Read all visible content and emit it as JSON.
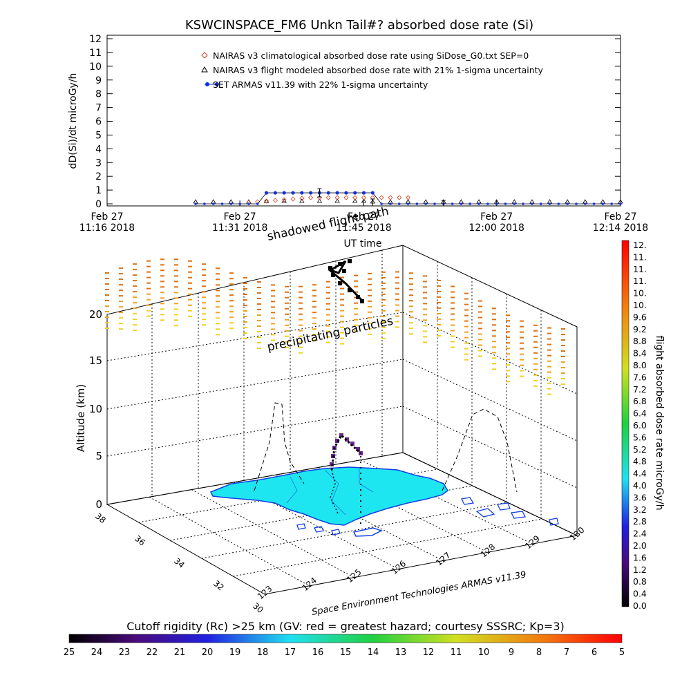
{
  "top_chart": {
    "type": "line",
    "title": "KSWCINSPACE_FM6 Unkn Tail#? absorbed dose rate (Si)",
    "ylabel": "dD(Si)/dt microGy/h",
    "xlabel": "UT time",
    "ylim": [
      0,
      12
    ],
    "yticks": [
      0,
      1,
      2,
      3,
      4,
      5,
      6,
      7,
      8,
      9,
      10,
      11,
      12
    ],
    "xlim_minutes": [
      0,
      58
    ],
    "xticks": [
      {
        "m": 0,
        "l1": "Feb 27",
        "l2": "11:16 2018"
      },
      {
        "m": 15,
        "l1": "Feb 27",
        "l2": "11:31 2018"
      },
      {
        "m": 29,
        "l1": "Feb 27",
        "l2": "11:45 2018"
      },
      {
        "m": 44,
        "l1": "Feb 27",
        "l2": "12:00 2018"
      },
      {
        "m": 58,
        "l1": "Feb 27",
        "l2": "12:14 2018"
      }
    ],
    "legend": [
      {
        "symbol": "diamond",
        "color": "#d04020",
        "label": "NAIRAS v3 climatological absorbed dose rate using SiDose_G0.txt SEP=0"
      },
      {
        "symbol": "triangle",
        "color": "#000000",
        "label": "NAIRAS v3 flight modeled absorbed dose rate with 21% 1-sigma uncertainty"
      },
      {
        "symbol": "circle",
        "color": "#1030e0",
        "label": "SET ARMAS v11.39 with 22% 1-sigma uncertainty"
      }
    ],
    "series": [
      {
        "name": "NAIRAS v3 climatological absorbed dose rate using SiDose_G0.txt SEP=0",
        "x": [
          16,
          17,
          18,
          19,
          20,
          21,
          22,
          23,
          24,
          25,
          26,
          27,
          28,
          29,
          30,
          31,
          32,
          33,
          34
        ],
        "y": [
          0.1,
          0.15,
          0.2,
          0.25,
          0.3,
          0.35,
          0.4,
          0.45,
          0.45,
          0.45,
          0.45,
          0.45,
          0.45,
          0.45,
          0.45,
          0.45,
          0.45,
          0.45,
          0.45
        ]
      },
      {
        "name": "NAIRAS v3 flight modeled absorbed dose rate with 21% 1-sigma uncertainty",
        "x": [
          10,
          12,
          14,
          16,
          18,
          20,
          22,
          24,
          26,
          28,
          29,
          30,
          32,
          34,
          36,
          38,
          40,
          42,
          44,
          46,
          48,
          50,
          52,
          54,
          56,
          58
        ],
        "y": [
          0.05,
          0.05,
          0.05,
          0.05,
          0.08,
          0.1,
          0.1,
          0.1,
          0.1,
          0.1,
          0.1,
          0.05,
          0.05,
          0.05,
          0.05,
          0.05,
          0.05,
          0.05,
          0.05,
          0.05,
          0.05,
          0.05,
          0.05,
          0.05,
          0.05,
          0.05
        ]
      },
      {
        "name": "SET ARMAS v11.39 with 22% 1-sigma uncertainty",
        "x": [
          10,
          11,
          12,
          13,
          14,
          15,
          16,
          17,
          18,
          19,
          20,
          21,
          22,
          23,
          24,
          25,
          26,
          27,
          28,
          29,
          30,
          31,
          32,
          33,
          34,
          35,
          36,
          37,
          38,
          39,
          40,
          41,
          42,
          43,
          44,
          45,
          46,
          47,
          48,
          49,
          50,
          51,
          52,
          53,
          54,
          55,
          56,
          57,
          58
        ],
        "y": [
          0,
          0,
          0,
          0,
          0,
          0,
          0,
          0,
          0.8,
          0.8,
          0.8,
          0.8,
          0.8,
          0.8,
          0.8,
          0.8,
          0.8,
          0.8,
          0.8,
          0.8,
          0.8,
          0,
          0,
          0,
          0,
          0,
          0,
          0,
          0,
          0,
          0,
          0,
          0,
          0,
          0,
          0,
          0,
          0,
          0,
          0,
          0,
          0,
          0,
          0,
          0,
          0,
          0,
          0,
          0
        ]
      }
    ]
  },
  "map3d": {
    "ylabel": "Altitude (km)",
    "zticks": [
      0,
      5,
      10,
      15,
      20
    ],
    "lat_ticks": [
      "38",
      "36",
      "34",
      "32",
      "30"
    ],
    "lon_ticks": [
      "123",
      "124",
      "125",
      "126",
      "127",
      "128",
      "129",
      "130"
    ],
    "annotations": {
      "shadowed": "shadowed flight path",
      "precip": "precipitating particles",
      "credit": "Space Environment Technologies ARMAS v11.39"
    }
  },
  "dose_colorbar": {
    "label": "flight absorbed dose rate microGy/h",
    "ticks": [
      "12.",
      "11.",
      "11.",
      "11.",
      "10.",
      "10.",
      "9.6",
      "9.2",
      "8.8",
      "8.4",
      "8.0",
      "7.6",
      "7.2",
      "6.8",
      "6.4",
      "6.0",
      "5.6",
      "5.2",
      "4.8",
      "4.4",
      "4.0",
      "3.6",
      "3.2",
      "2.8",
      "2.4",
      "2.0",
      "1.6",
      "1.2",
      "0.8",
      "0.4",
      "0.0"
    ]
  },
  "rigidity_colorbar": {
    "label": "Cutoff rigidity (Rc) >25 km (GV: red = greatest hazard; courtesy SSSRC; Kp=3)",
    "ticks": [
      "25",
      "24",
      "23",
      "22",
      "21",
      "20",
      "19",
      "18",
      "17",
      "16",
      "15",
      "14",
      "13",
      "12",
      "11",
      "10",
      "9",
      "8",
      "7",
      "6",
      "5"
    ]
  },
  "colors": {
    "land": "#1ee6f0",
    "coast": "#1040e0",
    "precip_orange": "#e07010",
    "precip_yellow": "#f0d020"
  }
}
